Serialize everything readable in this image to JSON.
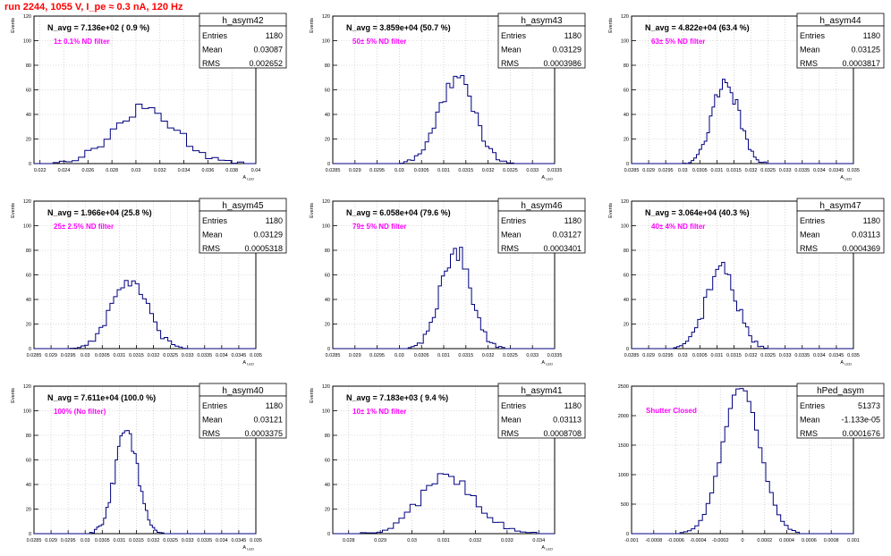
{
  "page_title": "run 2244,  1055 V, I_pe ≈ 0.3 nA, 120 Hz",
  "colors": {
    "title": "#ff0000",
    "histogram_line": "#000080",
    "annotation": "#ff00ff",
    "navg_text": "#000000",
    "grid": "#bbbbbb"
  },
  "chart_data": [
    {
      "type": "bar",
      "histogram": "h_asym42",
      "ylabel": "Events",
      "xlabel": "A_LED",
      "navg": "N_avg = 7.136e+02 ( 0.9 %)",
      "annotation": "1± 0.1% ND filter",
      "stats": {
        "entries_label": "Entries",
        "entries": "1180",
        "mean_label": "Mean",
        "mean": "0.03087",
        "rms_label": "RMS",
        "rms": "0.002652"
      },
      "xlim": [
        0.0215,
        0.04
      ],
      "ylim": [
        0,
        120
      ],
      "xticks": [
        "0.022",
        "0.024",
        "0.026",
        "0.028",
        "0.03",
        "0.032",
        "0.034",
        "0.036",
        "0.038",
        "0.04"
      ],
      "yticks": [
        "0",
        "20",
        "40",
        "60",
        "80",
        "100",
        "120"
      ],
      "peak_x": 0.0308,
      "peak_y": 44,
      "sigma": 0.00265
    },
    {
      "type": "bar",
      "histogram": "h_asym43",
      "ylabel": "Events",
      "xlabel": "A_LED",
      "navg": "N_avg = 3.859e+04 (50.7 %)",
      "annotation": "50± 5% ND filter",
      "stats": {
        "entries_label": "Entries",
        "entries": "1180",
        "mean_label": "Mean",
        "mean": "0.03129",
        "rms_label": "RMS",
        "rms": "0.0003986"
      },
      "xlim": [
        0.0285,
        0.0335
      ],
      "ylim": [
        0,
        120
      ],
      "xticks": [
        "0.0285",
        "0.029",
        "0.0295",
        "0.03",
        "0.0305",
        "0.031",
        "0.0315",
        "0.032",
        "0.0325",
        "0.033",
        "0.0335"
      ],
      "yticks": [
        "0",
        "20",
        "40",
        "60",
        "80",
        "100",
        "120"
      ],
      "peak_x": 0.03129,
      "peak_y": 70,
      "sigma": 0.0004
    },
    {
      "type": "bar",
      "histogram": "h_asym44",
      "ylabel": "Events",
      "xlabel": "A_LED",
      "navg": "N_avg = 4.822e+04 (63.4 %)",
      "annotation": "63± 5% ND filter",
      "stats": {
        "entries_label": "Entries",
        "entries": "1180",
        "mean_label": "Mean",
        "mean": "0.03125",
        "rms_label": "RMS",
        "rms": "0.0003817"
      },
      "xlim": [
        0.0285,
        0.035
      ],
      "ylim": [
        0,
        120
      ],
      "xticks": [
        "0.0285",
        "0.029",
        "0.0295",
        "0.03",
        "0.0305",
        "0.031",
        "0.0315",
        "0.032",
        "0.0325",
        "0.033",
        "0.0335",
        "0.034",
        "0.0345",
        "0.035"
      ],
      "yticks": [
        "0",
        "20",
        "40",
        "60",
        "80",
        "100",
        "120"
      ],
      "peak_x": 0.03125,
      "peak_y": 68,
      "sigma": 0.00038
    },
    {
      "type": "bar",
      "histogram": "h_asym45",
      "ylabel": "Events",
      "xlabel": "A_LED",
      "navg": "N_avg = 1.966e+04 (25.8 %)",
      "annotation": "25± 2.5% ND filter",
      "stats": {
        "entries_label": "Entries",
        "entries": "1180",
        "mean_label": "Mean",
        "mean": "0.03129",
        "rms_label": "RMS",
        "rms": "0.0005318"
      },
      "xlim": [
        0.0285,
        0.035
      ],
      "ylim": [
        0,
        120
      ],
      "xticks": [
        "0.0285",
        "0.029",
        "0.0295",
        "0.03",
        "0.0305",
        "0.031",
        "0.0315",
        "0.032",
        "0.0325",
        "0.033",
        "0.0335",
        "0.034",
        "0.0345",
        "0.035"
      ],
      "yticks": [
        "0",
        "20",
        "40",
        "60",
        "80",
        "100",
        "120"
      ],
      "peak_x": 0.03129,
      "peak_y": 55,
      "sigma": 0.00053
    },
    {
      "type": "bar",
      "histogram": "h_asym46",
      "ylabel": "Events",
      "xlabel": "A_LED",
      "navg": "N_avg = 6.058e+04 (79.6 %)",
      "annotation": "79± 5% ND filter",
      "stats": {
        "entries_label": "Entries",
        "entries": "1180",
        "mean_label": "Mean",
        "mean": "0.03127",
        "rms_label": "RMS",
        "rms": "0.0003401"
      },
      "xlim": [
        0.0285,
        0.0335
      ],
      "ylim": [
        0,
        120
      ],
      "xticks": [
        "0.0285",
        "0.029",
        "0.0295",
        "0.03",
        "0.0305",
        "0.031",
        "0.0315",
        "0.032",
        "0.0325",
        "0.033",
        "0.0335"
      ],
      "yticks": [
        "0",
        "20",
        "40",
        "60",
        "80",
        "100",
        "120"
      ],
      "peak_x": 0.03127,
      "peak_y": 80,
      "sigma": 0.00034
    },
    {
      "type": "bar",
      "histogram": "h_asym47",
      "ylabel": "Events",
      "xlabel": "A_LED",
      "navg": "N_avg = 3.064e+04 (40.3 %)",
      "annotation": "40± 4% ND filter",
      "stats": {
        "entries_label": "Entries",
        "entries": "1180",
        "mean_label": "Mean",
        "mean": "0.03113",
        "rms_label": "RMS",
        "rms": "0.0004369"
      },
      "xlim": [
        0.0285,
        0.035
      ],
      "ylim": [
        0,
        120
      ],
      "xticks": [
        "0.0285",
        "0.029",
        "0.0295",
        "0.03",
        "0.0305",
        "0.031",
        "0.0315",
        "0.032",
        "0.0325",
        "0.033",
        "0.0335",
        "0.034",
        "0.0345",
        "0.035"
      ],
      "yticks": [
        "0",
        "20",
        "40",
        "60",
        "80",
        "100",
        "120"
      ],
      "peak_x": 0.03113,
      "peak_y": 66,
      "sigma": 0.00044
    },
    {
      "type": "bar",
      "histogram": "h_asym40",
      "ylabel": "Events",
      "xlabel": "A_LED",
      "navg": "N_avg = 7.611e+04 (100.0 %)",
      "annotation": "100% (No filter)",
      "stats": {
        "entries_label": "Entries",
        "entries": "1180",
        "mean_label": "Mean",
        "mean": "0.03121",
        "rms_label": "RMS",
        "rms": "0.0003375"
      },
      "xlim": [
        0.0285,
        0.035
      ],
      "ylim": [
        0,
        120
      ],
      "xticks": [
        "0.0285",
        "0.029",
        "0.0295",
        "0.03",
        "0.0305",
        "0.031",
        "0.0315",
        "0.032",
        "0.0325",
        "0.033",
        "0.0335",
        "0.034",
        "0.0345",
        "0.035"
      ],
      "yticks": [
        "0",
        "20",
        "40",
        "60",
        "80",
        "100",
        "120"
      ],
      "peak_x": 0.03121,
      "peak_y": 82,
      "sigma": 0.00034
    },
    {
      "type": "bar",
      "histogram": "h_asym41",
      "ylabel": "Events",
      "xlabel": "A_LED",
      "navg": "N_avg = 7.183e+03 ( 9.4 %)",
      "annotation": "10± 1% ND filter",
      "stats": {
        "entries_label": "Entries",
        "entries": "1180",
        "mean_label": "Mean",
        "mean": "0.03113",
        "rms_label": "RMS",
        "rms": "0.0008708"
      },
      "xlim": [
        0.0275,
        0.0345
      ],
      "ylim": [
        0,
        120
      ],
      "xticks": [
        "0.028",
        "0.029",
        "0.03",
        "0.031",
        "0.032",
        "0.033",
        "0.034"
      ],
      "yticks": [
        "0",
        "20",
        "40",
        "60",
        "80",
        "100",
        "120"
      ],
      "peak_x": 0.03113,
      "peak_y": 47,
      "sigma": 0.00087
    },
    {
      "type": "bar",
      "histogram": "hPed_asym",
      "ylabel": "",
      "xlabel": "",
      "navg": "",
      "annotation": "Shutter Closed",
      "stats": {
        "entries_label": "Entries",
        "entries": "51373",
        "mean_label": "Mean",
        "mean": "-1.133e-05",
        "rms_label": "RMS",
        "rms": "0.0001676"
      },
      "xlim": [
        -0.001,
        0.001
      ],
      "ylim": [
        0,
        2500
      ],
      "xticks": [
        "-0.001",
        "-0.0008",
        "-0.0006",
        "-0.0004",
        "-0.0002",
        "0",
        "0.0002",
        "0.0004",
        "0.0006",
        "0.0008",
        "0.001"
      ],
      "yticks": [
        "0",
        "500",
        "1000",
        "1500",
        "2000",
        "2500"
      ],
      "peak_x": -1.133e-05,
      "peak_y": 2480,
      "sigma": 0.000168
    }
  ]
}
